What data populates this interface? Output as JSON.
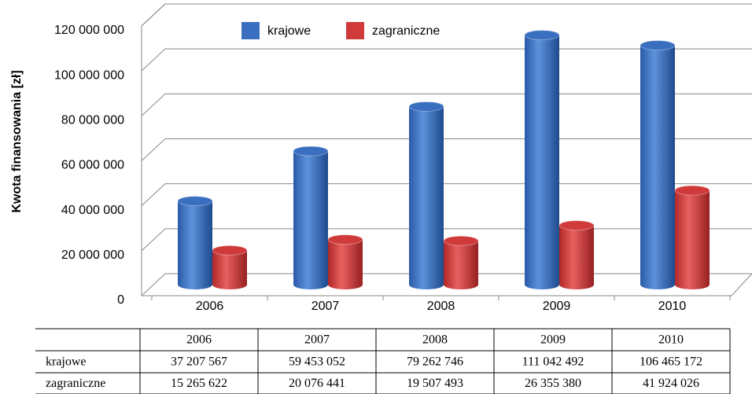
{
  "chart_data": {
    "type": "bar3d",
    "y_axis_label": "Kwota finansowania [zł]",
    "categories": [
      "2006",
      "2007",
      "2008",
      "2009",
      "2010"
    ],
    "series": [
      {
        "name": "krajowe",
        "color": "#3a6fc0",
        "values": [
          37207567,
          59453052,
          79262746,
          111042492,
          106465172
        ],
        "value_labels": [
          "37 207 567",
          "59 453 052",
          "79 262 746",
          "111 042 492",
          "106 465 172"
        ]
      },
      {
        "name": "zagraniczne",
        "color": "#d03a3a",
        "values": [
          15265622,
          20076441,
          19507493,
          26355380,
          41924026
        ],
        "value_labels": [
          "15 265 622",
          "20 076 441",
          "19 507 493",
          "26 355 380",
          "41 924 026"
        ]
      }
    ],
    "ylim": [
      0,
      120000000
    ],
    "yticks": [
      0,
      {
        "value": 20000000,
        "label": "20 000 000"
      },
      {
        "value": 40000000,
        "label": "40 000 000"
      },
      {
        "value": 60000000,
        "label": "60 000 000"
      },
      {
        "value": 80000000,
        "label": "80 000 000"
      },
      {
        "value": 100000000,
        "label": "100 000 000"
      },
      {
        "value": 120000000,
        "label": "120 000 000"
      }
    ],
    "grid": true,
    "legend": "top"
  }
}
